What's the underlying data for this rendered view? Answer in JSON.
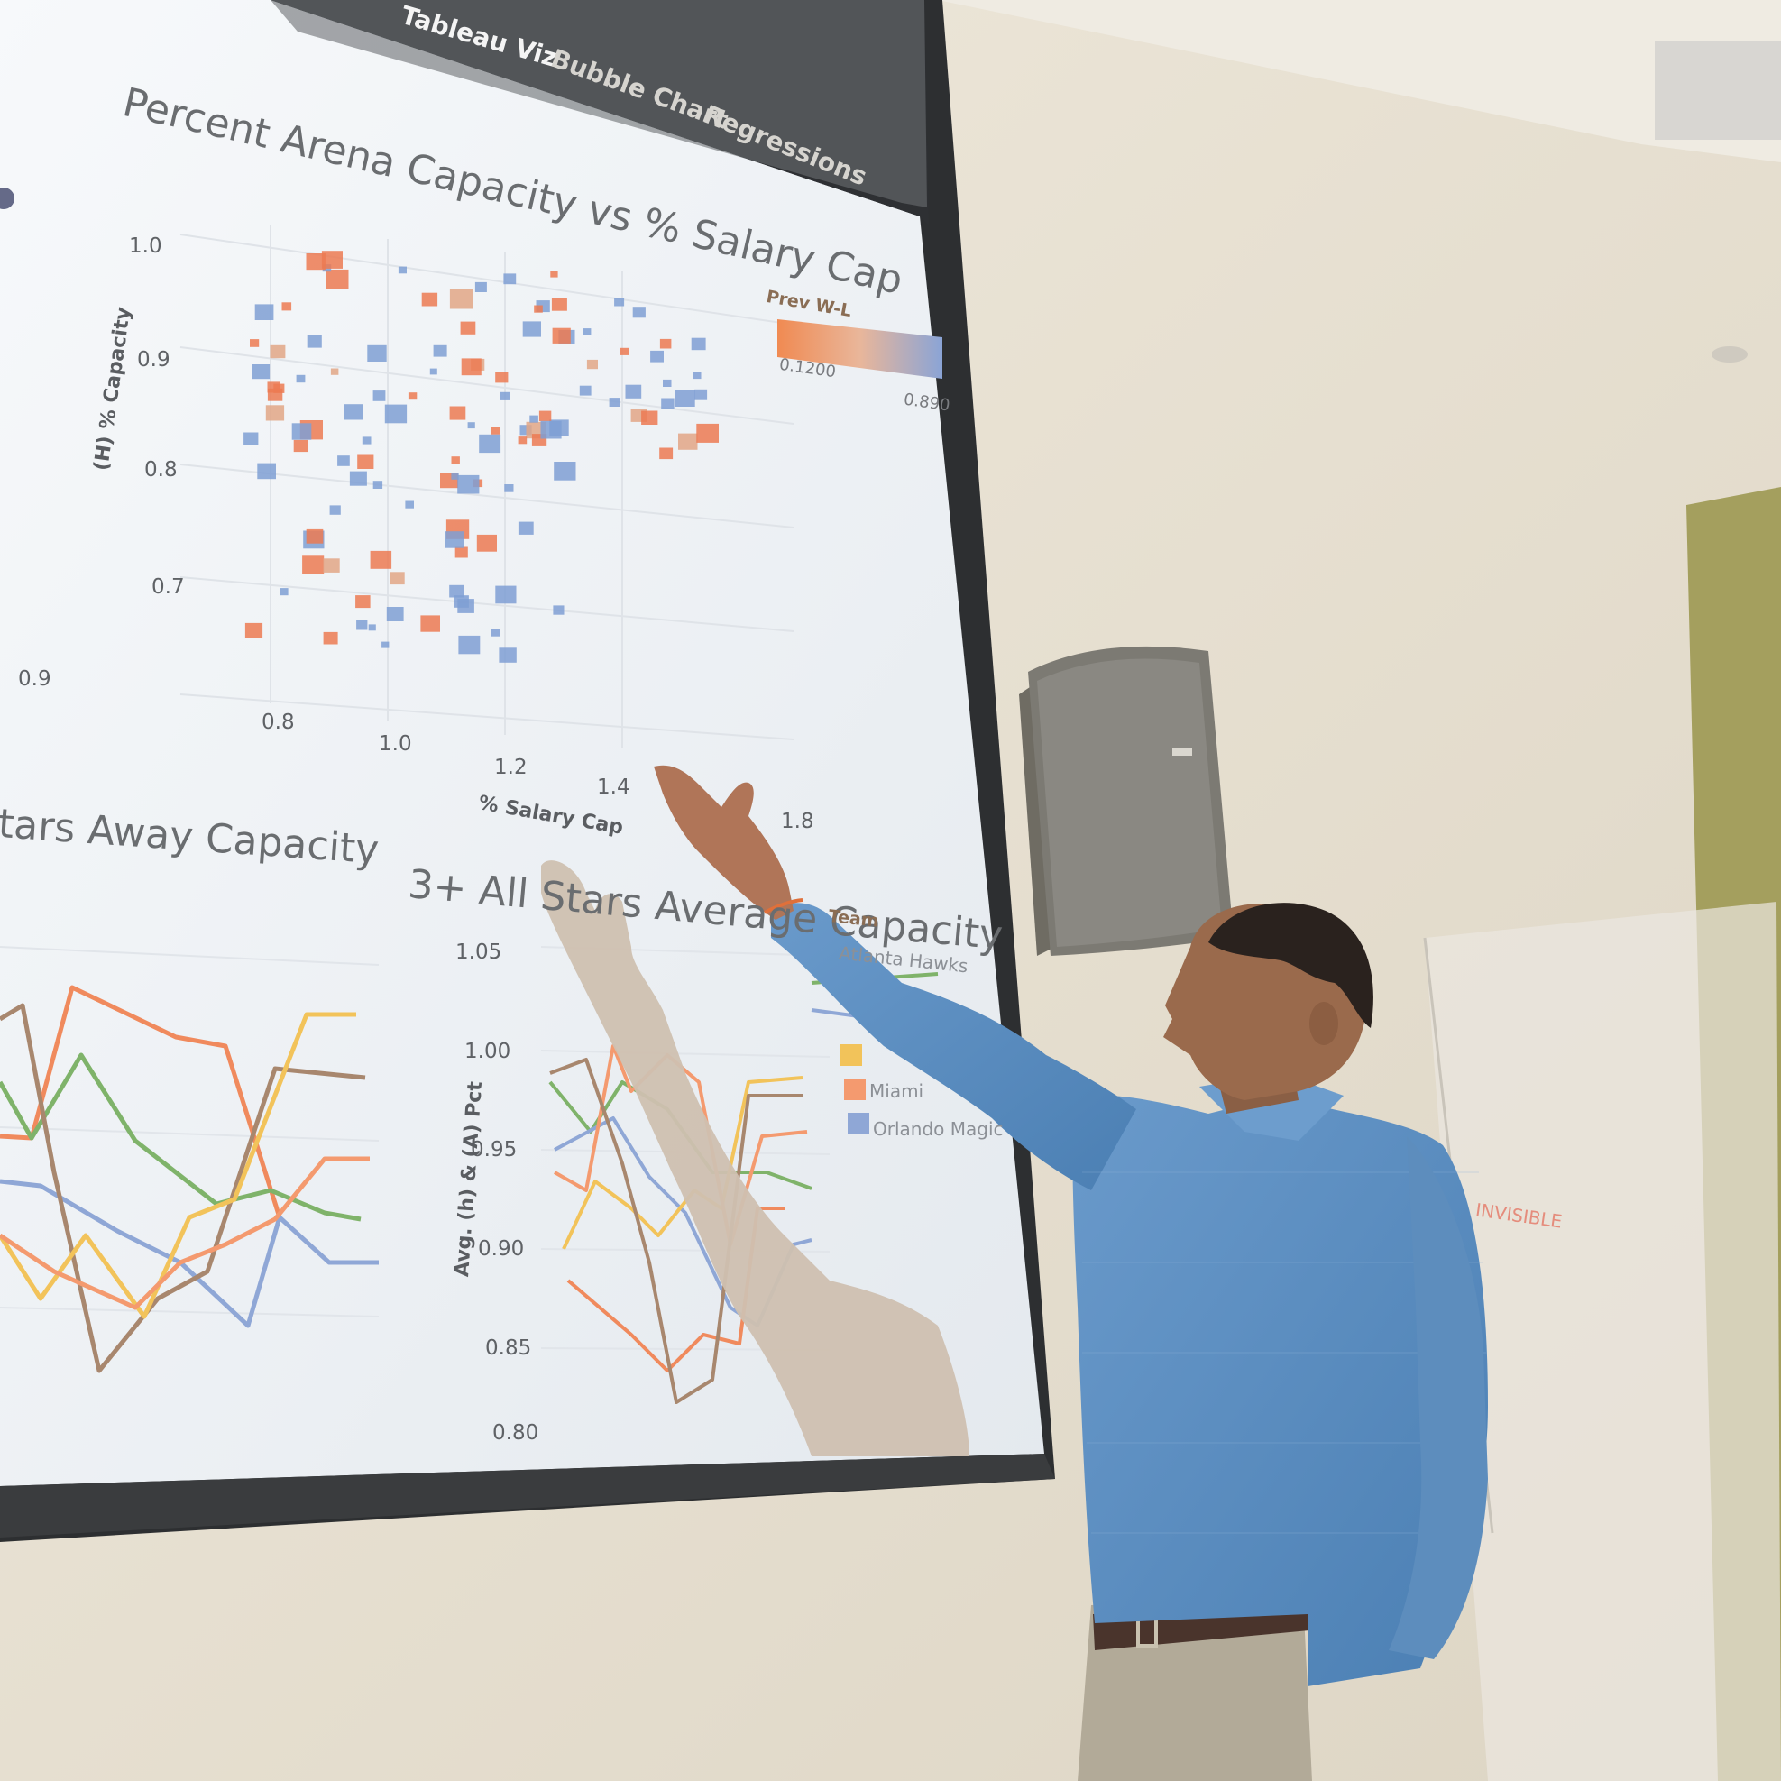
{
  "tabs": [
    {
      "label": "Tableau Viz",
      "active": true
    },
    {
      "label": "Bubble Chart",
      "active": false
    },
    {
      "label": "Regressions",
      "active": false
    }
  ],
  "scatter": {
    "title": "Percent Arena Capacity vs % Salary Cap",
    "ylabel": "(H) % Capacity",
    "xlabel": "% Salary Cap",
    "yticks": [
      "1.0",
      "0.9",
      "0.8",
      "0.7"
    ],
    "xticks": [
      "0.8",
      "1.0",
      "1.2",
      "1.4",
      "1.8"
    ],
    "side_tick": "0.9",
    "legend_title": "Prev W-L",
    "legend_min": "0.1200",
    "legend_max": "0.890",
    "colors": {
      "low": "#ec7a52",
      "high": "#7f9fd4",
      "mid": "#e2a686"
    }
  },
  "line_left": {
    "title": "tars Away Capacity",
    "series_colors": [
      "#f08a5d",
      "#7fb36a",
      "#8fa7d6",
      "#a8876e",
      "#f2c35a",
      "#f49a6f"
    ]
  },
  "line_right": {
    "title": "3+ All Stars Average Capacity",
    "ylabel": "Avg. (h) & (A) Pct",
    "yticks": [
      "1.05",
      "1.00",
      "0.95",
      "0.90",
      "0.85",
      "0.80"
    ],
    "legend_title": "Team",
    "legend": [
      {
        "label": "Atlanta Hawks",
        "color": "#7fb36a"
      },
      {
        "label": "",
        "color": "#f2c35a"
      },
      {
        "label": "Miami",
        "color": "#f49a6f"
      },
      {
        "label": "Orlando Magic",
        "color": "#8fa7d6"
      }
    ]
  },
  "whiteboard_note": "INVISIBLE",
  "speaker_shirt_color": "#5f8fc0",
  "wall_color": "#e8e2d4"
}
